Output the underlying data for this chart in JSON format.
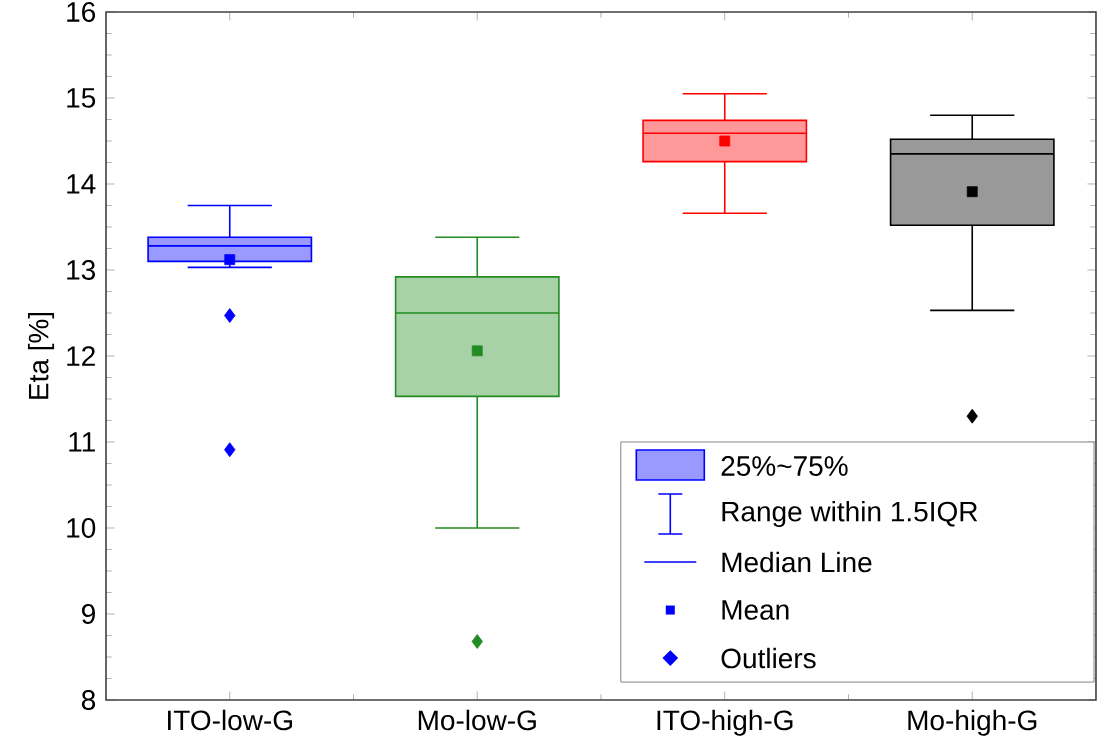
{
  "chart_data": {
    "type": "box",
    "ylabel": "Eta [%]",
    "categories": [
      "ITO-low-G",
      "Mo-low-G",
      "ITO-high-G",
      "Mo-high-G"
    ],
    "colors": [
      "#0000ff",
      "#228b22",
      "#ff0000",
      "#000000"
    ],
    "boxes": [
      {
        "low": 13.03,
        "q1": 13.1,
        "median": 13.28,
        "q3": 13.38,
        "high": 13.75,
        "mean": 13.12,
        "outliers": [
          12.47,
          10.91
        ]
      },
      {
        "low": 10.0,
        "q1": 11.53,
        "median": 12.5,
        "q3": 12.92,
        "high": 13.38,
        "mean": 12.06,
        "outliers": [
          8.68
        ]
      },
      {
        "low": 13.66,
        "q1": 14.26,
        "median": 14.59,
        "q3": 14.74,
        "high": 15.05,
        "mean": 14.5
      },
      {
        "low": 12.53,
        "q1": 13.52,
        "median": 14.35,
        "q3": 14.52,
        "high": 14.8,
        "mean": 13.91,
        "outliers": [
          11.3
        ]
      }
    ],
    "ylim": [
      8,
      16
    ],
    "yticks": [
      8,
      9,
      10,
      11,
      12,
      13,
      14,
      15,
      16
    ],
    "annotations": [
      "25%~75%",
      "Range within 1.5IQR",
      "Median Line",
      "Mean",
      "Outliers"
    ]
  }
}
